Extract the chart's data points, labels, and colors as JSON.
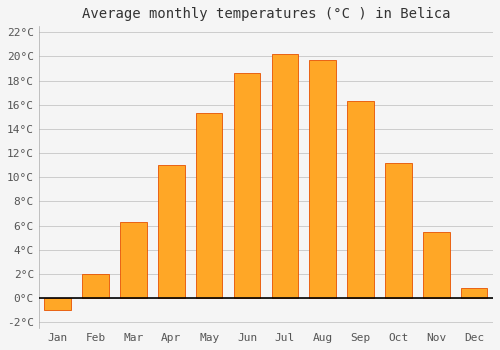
{
  "title": "Average monthly temperatures (°C ) in Belica",
  "months": [
    "Jan",
    "Feb",
    "Mar",
    "Apr",
    "May",
    "Jun",
    "Jul",
    "Aug",
    "Sep",
    "Oct",
    "Nov",
    "Dec"
  ],
  "values": [
    -1.0,
    2.0,
    6.3,
    11.0,
    15.3,
    18.6,
    20.2,
    19.7,
    16.3,
    11.2,
    5.5,
    0.8
  ],
  "bar_color": "#FFA726",
  "bar_edge_color": "#E65100",
  "ylim": [
    -2.5,
    22.5
  ],
  "yticks": [
    -2,
    0,
    2,
    4,
    6,
    8,
    10,
    12,
    14,
    16,
    18,
    20,
    22
  ],
  "background_color": "#f5f5f5",
  "plot_bg_color": "#f5f5f5",
  "grid_color": "#cccccc",
  "title_fontsize": 10,
  "tick_fontsize": 8,
  "bar_width": 0.7,
  "figsize": [
    5.0,
    3.5
  ],
  "dpi": 100
}
